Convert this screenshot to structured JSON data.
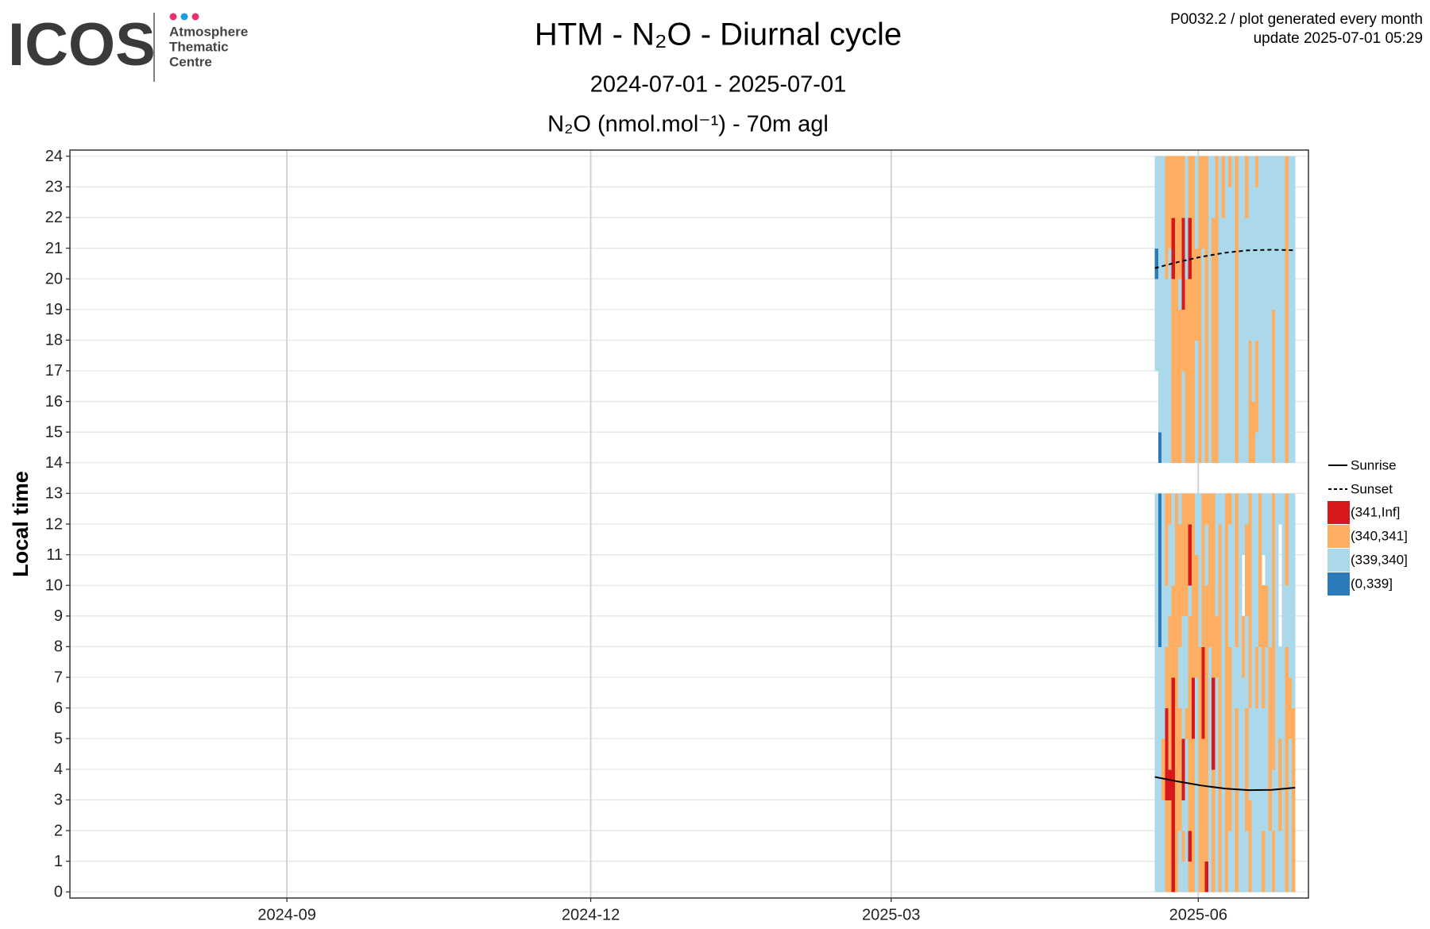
{
  "header": {
    "logo": "ICOS",
    "logo_lines": [
      "Atmosphere",
      "Thematic",
      "Centre"
    ],
    "info": [
      "P0032.2 / plot generated every month",
      "update  2025-07-01 05:29"
    ]
  },
  "chart_data": {
    "type": "heatmap",
    "title": "HTM - N₂O - Diurnal cycle",
    "subtitle": "2024-07-01 - 2025-07-01",
    "panel_title": "N₂O (nmol.mol⁻¹) - 70m agl",
    "y_label": "Local time",
    "xlim": [
      "2024-06-28",
      "2025-07-04"
    ],
    "xticks": [
      {
        "value": "2024-09-01",
        "label": "2024-09"
      },
      {
        "value": "2024-12-01",
        "label": "2024-12"
      },
      {
        "value": "2025-03-01",
        "label": "2025-03"
      },
      {
        "value": "2025-06-01",
        "label": "2025-06"
      }
    ],
    "ylim": [
      -0.2,
      24.2
    ],
    "yticks": [
      0,
      1,
      2,
      3,
      4,
      5,
      6,
      7,
      8,
      9,
      10,
      11,
      12,
      13,
      14,
      15,
      16,
      17,
      18,
      19,
      20,
      21,
      22,
      23,
      24
    ],
    "grid": true,
    "classes": [
      {
        "name": "(0,339]",
        "color": "#2b7bba"
      },
      {
        "name": "(339,340]",
        "color": "#abd9e9"
      },
      {
        "name": "(340,341]",
        "color": "#fdae61"
      },
      {
        "name": "(341,Inf]",
        "color": "#d7191c"
      }
    ],
    "hours": [
      0,
      1,
      2,
      3,
      4,
      5,
      6,
      7,
      8,
      9,
      10,
      11,
      12,
      13,
      14,
      15,
      16,
      17,
      18,
      19,
      20,
      21,
      22,
      23
    ],
    "x": [
      "2025-05-19",
      "2025-05-20",
      "2025-05-21",
      "2025-05-22",
      "2025-05-23",
      "2025-05-24",
      "2025-05-25",
      "2025-05-26",
      "2025-05-27",
      "2025-05-28",
      "2025-05-29",
      "2025-05-30",
      "2025-05-31",
      "2025-06-01",
      "2025-06-02",
      "2025-06-03",
      "2025-06-04",
      "2025-06-05",
      "2025-06-06",
      "2025-06-07",
      "2025-06-08",
      "2025-06-09",
      "2025-06-10",
      "2025-06-11",
      "2025-06-12",
      "2025-06-13",
      "2025-06-14",
      "2025-06-15",
      "2025-06-16",
      "2025-06-17",
      "2025-06-18",
      "2025-06-19",
      "2025-06-20",
      "2025-06-21",
      "2025-06-22",
      "2025-06-23",
      "2025-06-24",
      "2025-06-25",
      "2025-06-26",
      "2025-06-27",
      "2025-06-28",
      "2025-06-29"
    ],
    "values": [
      [
        1,
        1,
        1,
        1,
        1,
        1,
        1,
        1,
        1,
        1,
        1,
        1,
        1,
        null,
        null,
        null,
        null,
        1,
        1,
        1,
        0,
        1,
        1,
        1
      ],
      [
        1,
        1,
        1,
        1,
        1,
        1,
        1,
        1,
        0,
        0,
        0,
        0,
        0,
        null,
        0,
        1,
        1,
        1,
        1,
        1,
        1,
        1,
        1,
        1
      ],
      [
        1,
        1,
        1,
        2,
        2,
        1,
        1,
        1,
        1,
        1,
        1,
        1,
        1,
        null,
        1,
        1,
        1,
        1,
        1,
        1,
        1,
        1,
        1,
        1
      ],
      [
        2,
        2,
        2,
        3,
        3,
        3,
        2,
        2,
        1,
        1,
        2,
        2,
        2,
        null,
        1,
        1,
        1,
        1,
        1,
        1,
        2,
        2,
        2,
        2
      ],
      [
        2,
        2,
        2,
        3,
        2,
        2,
        2,
        2,
        2,
        1,
        1,
        1,
        2,
        null,
        1,
        1,
        1,
        1,
        1,
        1,
        1,
        2,
        2,
        2
      ],
      [
        3,
        3,
        3,
        3,
        3,
        3,
        3,
        2,
        2,
        2,
        1,
        1,
        1,
        null,
        2,
        2,
        2,
        2,
        2,
        2,
        3,
        3,
        2,
        2
      ],
      [
        2,
        2,
        2,
        2,
        2,
        2,
        2,
        2,
        2,
        2,
        2,
        2,
        2,
        null,
        2,
        2,
        2,
        2,
        2,
        2,
        2,
        2,
        2,
        2
      ],
      [
        1,
        1,
        2,
        2,
        2,
        2,
        1,
        1,
        2,
        2,
        2,
        2,
        1,
        null,
        2,
        2,
        2,
        2,
        2,
        1,
        2,
        2,
        2,
        2
      ],
      [
        1,
        2,
        1,
        3,
        3,
        1,
        1,
        1,
        1,
        2,
        2,
        2,
        2,
        null,
        1,
        1,
        1,
        2,
        2,
        3,
        3,
        3,
        2,
        2
      ],
      [
        1,
        1,
        1,
        1,
        1,
        2,
        1,
        1,
        1,
        2,
        2,
        2,
        2,
        null,
        2,
        2,
        2,
        2,
        2,
        2,
        1,
        1,
        1,
        1
      ],
      [
        2,
        3,
        2,
        2,
        2,
        2,
        2,
        2,
        2,
        1,
        3,
        3,
        2,
        null,
        2,
        2,
        2,
        2,
        2,
        2,
        3,
        3,
        2,
        2
      ],
      [
        2,
        2,
        2,
        2,
        2,
        3,
        3,
        2,
        2,
        2,
        2,
        2,
        2,
        null,
        2,
        2,
        2,
        2,
        2,
        2,
        2,
        2,
        2,
        2
      ],
      [
        1,
        1,
        1,
        1,
        1,
        1,
        1,
        2,
        2,
        2,
        2,
        1,
        1,
        null,
        1,
        1,
        1,
        1,
        2,
        2,
        2,
        1,
        1,
        1
      ],
      [
        2,
        2,
        2,
        2,
        2,
        2,
        2,
        2,
        1,
        1,
        1,
        1,
        1,
        null,
        2,
        2,
        2,
        2,
        2,
        2,
        2,
        2,
        2,
        2
      ],
      [
        2,
        2,
        2,
        2,
        2,
        3,
        3,
        3,
        2,
        2,
        2,
        2,
        2,
        null,
        1,
        1,
        1,
        1,
        1,
        1,
        1,
        2,
        2,
        2
      ],
      [
        3,
        2,
        2,
        2,
        2,
        2,
        2,
        2,
        2,
        2,
        1,
        1,
        2,
        null,
        2,
        2,
        2,
        2,
        2,
        2,
        2,
        2,
        2,
        2
      ],
      [
        1,
        1,
        1,
        1,
        1,
        1,
        1,
        1,
        2,
        2,
        2,
        2,
        2,
        null,
        1,
        1,
        1,
        1,
        1,
        1,
        1,
        1,
        1,
        1
      ],
      [
        2,
        2,
        2,
        2,
        3,
        3,
        3,
        2,
        2,
        2,
        2,
        2,
        2,
        null,
        2,
        2,
        2,
        2,
        2,
        2,
        2,
        2,
        1,
        1
      ],
      [
        1,
        1,
        1,
        1,
        1,
        1,
        1,
        2,
        2,
        1,
        1,
        1,
        1,
        null,
        2,
        2,
        2,
        2,
        2,
        2,
        2,
        2,
        2,
        2
      ],
      [
        2,
        2,
        2,
        2,
        2,
        2,
        2,
        2,
        2,
        2,
        2,
        2,
        1,
        null,
        1,
        1,
        1,
        1,
        1,
        1,
        1,
        1,
        1,
        1
      ],
      [
        1,
        1,
        1,
        1,
        1,
        1,
        1,
        1,
        1,
        1,
        1,
        1,
        1,
        null,
        1,
        1,
        1,
        1,
        1,
        1,
        1,
        1,
        2,
        2
      ],
      [
        2,
        2,
        2,
        2,
        2,
        2,
        2,
        2,
        2,
        2,
        2,
        2,
        2,
        null,
        1,
        1,
        1,
        1,
        1,
        1,
        1,
        1,
        1,
        1
      ],
      [
        1,
        1,
        2,
        2,
        2,
        2,
        2,
        2,
        1,
        1,
        1,
        1,
        2,
        null,
        1,
        1,
        1,
        1,
        1,
        1,
        1,
        1,
        1,
        2
      ],
      [
        1,
        1,
        1,
        1,
        1,
        1,
        1,
        1,
        1,
        1,
        1,
        1,
        1,
        null,
        1,
        1,
        1,
        1,
        1,
        1,
        1,
        1,
        1,
        1
      ],
      [
        2,
        2,
        2,
        2,
        2,
        2,
        1,
        1,
        2,
        2,
        2,
        2,
        2,
        null,
        2,
        2,
        2,
        2,
        2,
        2,
        2,
        2,
        2,
        2
      ],
      [
        1,
        1,
        1,
        1,
        1,
        1,
        1,
        1,
        1,
        1,
        1,
        1,
        1,
        null,
        1,
        1,
        1,
        1,
        1,
        1,
        1,
        1,
        1,
        1
      ],
      [
        1,
        1,
        1,
        1,
        1,
        1,
        1,
        2,
        2,
        null,
        null,
        1,
        1,
        null,
        1,
        1,
        1,
        1,
        1,
        1,
        1,
        1,
        1,
        1
      ],
      [
        1,
        1,
        2,
        2,
        2,
        2,
        1,
        1,
        1,
        2,
        2,
        2,
        1,
        null,
        1,
        1,
        1,
        1,
        1,
        1,
        1,
        1,
        2,
        2
      ],
      [
        2,
        2,
        2,
        1,
        1,
        1,
        2,
        2,
        2,
        2,
        2,
        2,
        2,
        null,
        2,
        2,
        2,
        2,
        1,
        1,
        1,
        1,
        1,
        1
      ],
      [
        1,
        1,
        1,
        1,
        1,
        1,
        1,
        1,
        1,
        1,
        1,
        1,
        1,
        null,
        2,
        2,
        1,
        1,
        1,
        1,
        1,
        1,
        1,
        1
      ],
      [
        1,
        1,
        1,
        1,
        1,
        1,
        2,
        2,
        1,
        1,
        1,
        1,
        1,
        null,
        1,
        2,
        2,
        2,
        1,
        1,
        1,
        1,
        1,
        2
      ],
      [
        1,
        1,
        1,
        1,
        1,
        1,
        1,
        1,
        2,
        2,
        2,
        2,
        2,
        null,
        1,
        1,
        1,
        1,
        1,
        1,
        1,
        1,
        1,
        1
      ],
      [
        2,
        2,
        1,
        1,
        1,
        1,
        2,
        2,
        2,
        2,
        null,
        1,
        1,
        null,
        1,
        1,
        1,
        1,
        1,
        1,
        1,
        1,
        1,
        1
      ],
      [
        1,
        1,
        1,
        1,
        1,
        1,
        1,
        1,
        2,
        2,
        1,
        1,
        1,
        null,
        1,
        1,
        1,
        1,
        1,
        1,
        1,
        1,
        1,
        1
      ],
      [
        1,
        1,
        2,
        2,
        2,
        2,
        2,
        2,
        1,
        1,
        1,
        1,
        1,
        null,
        1,
        1,
        1,
        1,
        1,
        1,
        1,
        1,
        1,
        1
      ],
      [
        2,
        2,
        1,
        1,
        2,
        2,
        2,
        2,
        2,
        2,
        2,
        2,
        2,
        null,
        2,
        2,
        2,
        2,
        2,
        1,
        1,
        1,
        1,
        1
      ],
      [
        1,
        1,
        1,
        1,
        1,
        1,
        1,
        1,
        1,
        1,
        1,
        1,
        1,
        null,
        1,
        1,
        1,
        1,
        1,
        1,
        1,
        1,
        1,
        1
      ],
      [
        1,
        1,
        2,
        2,
        2,
        1,
        1,
        1,
        null,
        null,
        null,
        null,
        1,
        null,
        1,
        1,
        1,
        1,
        1,
        1,
        1,
        1,
        1,
        1
      ],
      [
        1,
        1,
        1,
        1,
        1,
        1,
        1,
        1,
        1,
        1,
        1,
        1,
        1,
        null,
        1,
        1,
        1,
        1,
        1,
        1,
        1,
        1,
        1,
        1
      ],
      [
        2,
        2,
        2,
        2,
        2,
        2,
        2,
        2,
        1,
        1,
        2,
        2,
        2,
        null,
        2,
        2,
        2,
        2,
        2,
        2,
        2,
        2,
        2,
        2
      ],
      [
        1,
        1,
        1,
        1,
        1,
        2,
        2,
        1,
        1,
        1,
        1,
        1,
        1,
        null,
        1,
        1,
        1,
        1,
        1,
        1,
        1,
        1,
        1,
        1
      ],
      [
        2,
        2,
        2,
        2,
        2,
        2,
        1,
        1,
        1,
        1,
        1,
        1,
        1,
        null,
        1,
        1,
        1,
        1,
        1,
        1,
        1,
        1,
        1,
        1
      ]
    ],
    "lines": [
      {
        "name": "Sunrise",
        "color": "#000000",
        "dashed": false,
        "x": [
          "2025-05-19",
          "2025-05-26",
          "2025-06-02",
          "2025-06-09",
          "2025-06-16",
          "2025-06-23",
          "2025-06-30"
        ],
        "values": [
          3.75,
          3.6,
          3.47,
          3.37,
          3.32,
          3.33,
          3.4
        ]
      },
      {
        "name": "Sunset",
        "color": "#000000",
        "dashed": true,
        "x": [
          "2025-05-19",
          "2025-05-26",
          "2025-06-02",
          "2025-06-09",
          "2025-06-16",
          "2025-06-23",
          "2025-06-30"
        ],
        "values": [
          20.35,
          20.55,
          20.72,
          20.85,
          20.93,
          20.95,
          20.93
        ]
      }
    ]
  }
}
